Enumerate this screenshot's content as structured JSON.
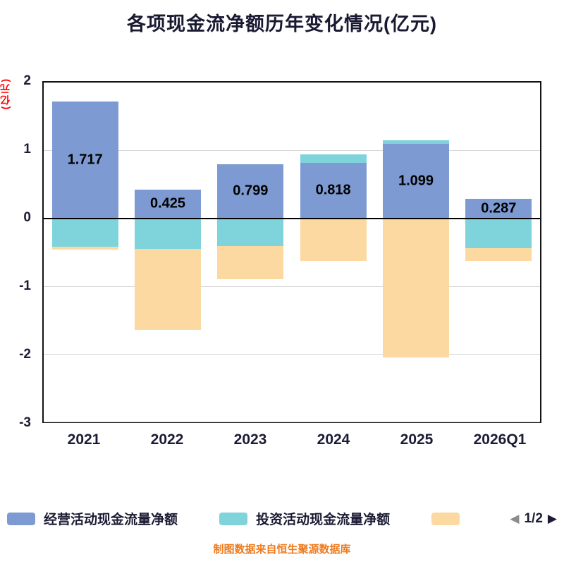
{
  "title": "各项现金流净额历年变化情况(亿元)",
  "y_axis_unit": "(亿元)",
  "footer": "制图数据来自恒生聚源数据库",
  "legend": {
    "items": [
      {
        "label": "经营活动现金流量净额",
        "color": "#7d9ad2"
      },
      {
        "label": "投资活动现金流量净额",
        "color": "#7fd3db"
      },
      {
        "label": "",
        "color": "#fbd9a0"
      }
    ],
    "pagination": "1/2",
    "prev_icon": "◀",
    "next_icon": "▶"
  },
  "chart_data": {
    "type": "bar",
    "stacked": true,
    "categories": [
      "2021",
      "2022",
      "2023",
      "2024",
      "2025",
      "2026Q1"
    ],
    "series": [
      {
        "name": "经营活动现金流量净额",
        "color": "#7d9ad2",
        "values": [
          1.717,
          0.425,
          0.799,
          0.818,
          1.099,
          0.287
        ]
      },
      {
        "name": "",
        "color": "#7fd3db",
        "values": [
          -0.42,
          -0.45,
          -0.41,
          0.12,
          0.05,
          -0.44
        ]
      },
      {
        "name": "",
        "color": "#fbd9a0",
        "values": [
          -0.04,
          -1.2,
          -0.49,
          -0.63,
          -2.05,
          -0.19
        ]
      }
    ],
    "labels": [
      "1.717",
      "0.425",
      "0.799",
      "0.818",
      "1.099",
      "0.287"
    ],
    "ylim": [
      -3,
      2
    ],
    "yticks": [
      2,
      1,
      0,
      -1,
      -2,
      -3
    ],
    "grid": true,
    "legend_position": "bottom"
  }
}
